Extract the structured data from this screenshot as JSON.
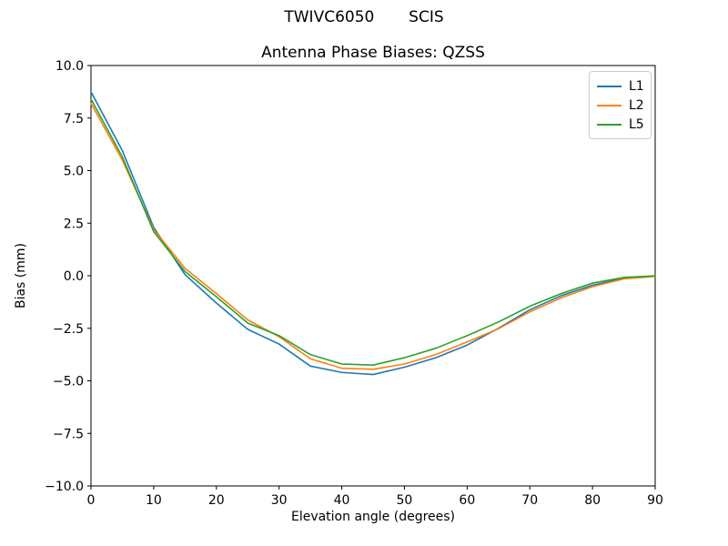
{
  "figure": {
    "background": "#ffffff",
    "axis_color": "#000000",
    "legend_border_color": "#cccccc"
  },
  "chart_data": {
    "type": "line",
    "suptitle": "TWIVC6050       SCIS",
    "title": "Antenna Phase Biases: QZSS",
    "xlabel": "Elevation angle (degrees)",
    "ylabel": "Bias (mm)",
    "xlim": [
      0,
      90
    ],
    "ylim": [
      -10,
      10
    ],
    "grid": false,
    "legend_position": "upper right",
    "xticks": [
      0,
      10,
      20,
      30,
      40,
      50,
      60,
      70,
      80,
      90
    ],
    "xtick_labels": [
      "0",
      "10",
      "20",
      "30",
      "40",
      "50",
      "60",
      "70",
      "80",
      "90"
    ],
    "yticks": [
      10,
      7.5,
      5,
      2.5,
      0,
      -2.5,
      -5,
      -7.5,
      -10
    ],
    "ytick_labels": [
      "10.0",
      "7.5",
      "5.0",
      "2.5",
      "0.0",
      "−2.5",
      "−5.0",
      "−7.5",
      "−10.0"
    ],
    "x": [
      0,
      5,
      10,
      15,
      20,
      25,
      30,
      35,
      40,
      45,
      50,
      55,
      60,
      65,
      70,
      75,
      80,
      85,
      90
    ],
    "series": [
      {
        "name": "L1",
        "color": "#1f77b4",
        "values": [
          8.75,
          5.95,
          2.3,
          0.05,
          -1.3,
          -2.55,
          -3.25,
          -4.3,
          -4.6,
          -4.7,
          -4.35,
          -3.9,
          -3.3,
          -2.5,
          -1.62,
          -0.95,
          -0.45,
          -0.12,
          -0.02
        ]
      },
      {
        "name": "L2",
        "color": "#ff7f0e",
        "values": [
          8.2,
          5.5,
          2.2,
          0.35,
          -0.85,
          -2.1,
          -2.9,
          -3.95,
          -4.4,
          -4.45,
          -4.2,
          -3.75,
          -3.15,
          -2.52,
          -1.72,
          -1.05,
          -0.52,
          -0.15,
          -0.03
        ]
      },
      {
        "name": "L5",
        "color": "#2ca02c",
        "values": [
          8.4,
          5.65,
          2.1,
          0.2,
          -1.0,
          -2.25,
          -2.85,
          -3.75,
          -4.2,
          -4.25,
          -3.9,
          -3.45,
          -2.85,
          -2.2,
          -1.45,
          -0.85,
          -0.35,
          -0.08,
          -0.01
        ]
      }
    ]
  }
}
